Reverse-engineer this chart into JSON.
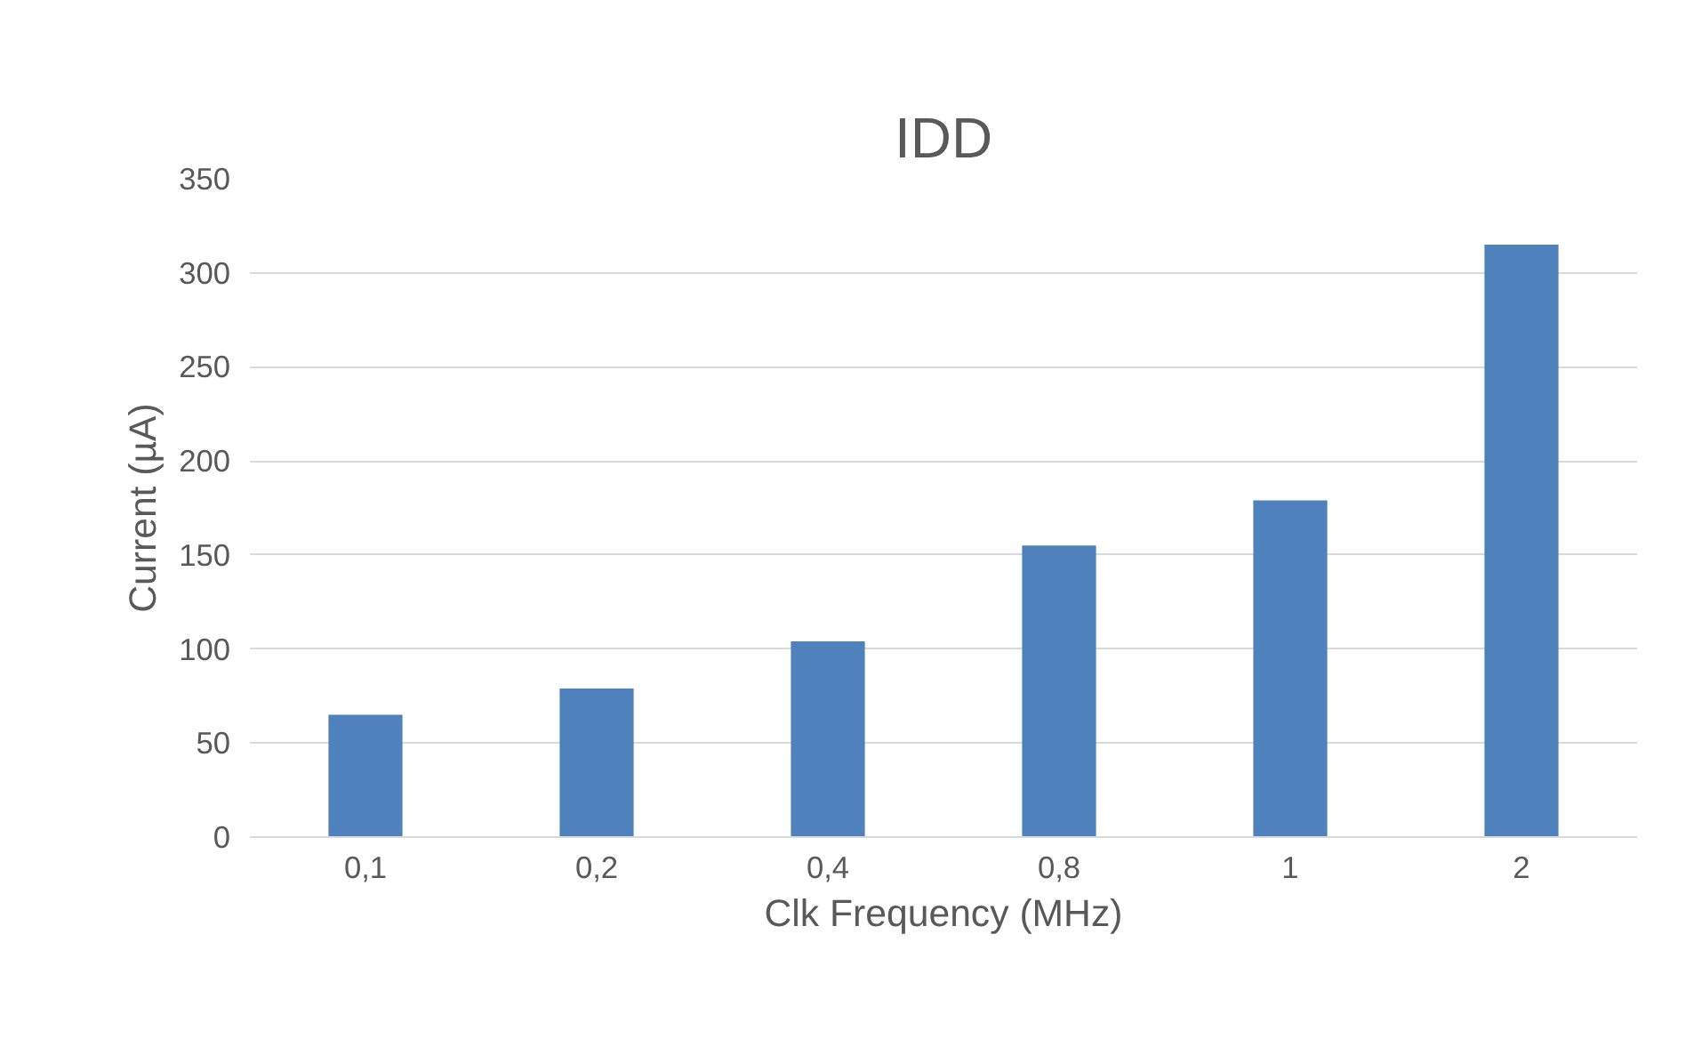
{
  "chart_data": {
    "type": "bar",
    "title": "IDD",
    "xlabel": "Clk Frequency (MHz)",
    "ylabel": "Current (µA)",
    "categories": [
      "0,1",
      "0,2",
      "0,4",
      "0,8",
      "1",
      "2"
    ],
    "values": [
      65,
      79,
      104,
      155,
      179,
      315
    ],
    "color": "#4f81bd",
    "ylim": [
      0,
      350
    ],
    "yticks": [
      0,
      50,
      100,
      150,
      200,
      250,
      300,
      350
    ],
    "grid": "y"
  }
}
